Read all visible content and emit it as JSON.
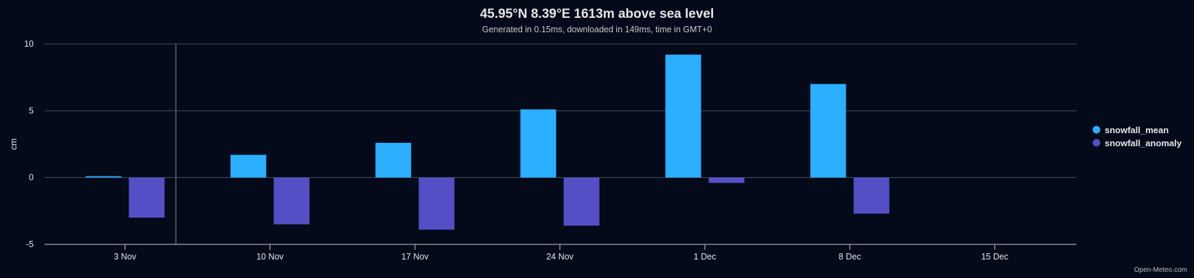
{
  "chart_data": {
    "type": "bar",
    "title": "45.95°N 8.39°E 1613m above sea level",
    "subtitle": "Generated in 0.15ms, downloaded in 149ms, time in GMT+0",
    "ylabel": "cm",
    "xlabel": "",
    "ylim": [
      -5,
      10
    ],
    "yticks": [
      -5,
      0,
      5,
      10
    ],
    "x_ticks": [
      "3 Nov",
      "10 Nov",
      "17 Nov",
      "24 Nov",
      "1 Dec",
      "8 Dec",
      "15 Dec"
    ],
    "categories": [
      "3 Nov",
      "10 Nov",
      "17 Nov",
      "24 Nov",
      "1 Dec",
      "8 Dec"
    ],
    "series": [
      {
        "name": "snowfall_mean",
        "color": "#2cafff",
        "values": [
          0.1,
          1.7,
          2.6,
          5.1,
          9.2,
          7.0
        ]
      },
      {
        "name": "snowfall_anomaly",
        "color": "#544fc5",
        "values": [
          -3.0,
          -3.5,
          -3.9,
          -3.6,
          -0.4,
          -2.7
        ]
      }
    ],
    "grid": true,
    "legend_position": "right",
    "credits": "Open-Meteo.com"
  }
}
